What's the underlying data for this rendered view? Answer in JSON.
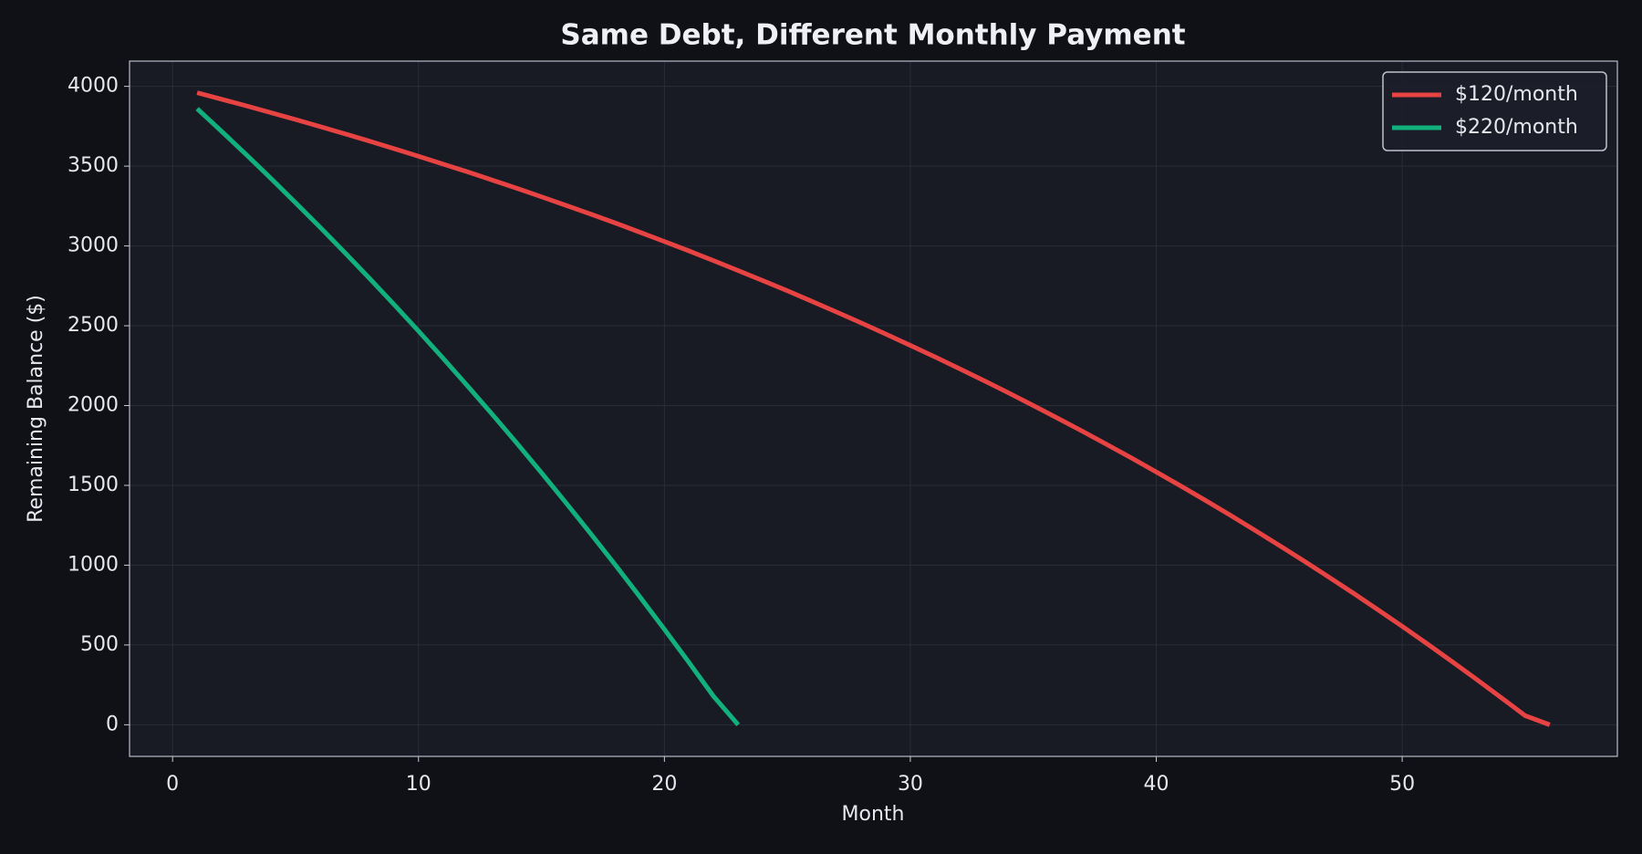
{
  "chart_data": {
    "type": "line",
    "title": "Same Debt, Different Monthly Payment",
    "xlabel": "Month",
    "ylabel": "Remaining Balance ($)",
    "xlim": [
      -1.75,
      58.75
    ],
    "ylim": [
      -198,
      4158
    ],
    "xticks": [
      0,
      10,
      20,
      30,
      40,
      50
    ],
    "yticks": [
      0,
      500,
      1000,
      1500,
      2000,
      2500,
      3000,
      3500,
      4000
    ],
    "grid": true,
    "legend": "upper right",
    "series": [
      {
        "name": "$120/month",
        "color": "#e84343",
        "x": [
          1,
          2,
          3,
          4,
          5,
          6,
          7,
          8,
          9,
          10,
          11,
          12,
          13,
          14,
          15,
          16,
          17,
          18,
          19,
          20,
          21,
          22,
          23,
          24,
          25,
          26,
          27,
          28,
          29,
          30,
          31,
          32,
          33,
          34,
          35,
          36,
          37,
          38,
          39,
          40,
          41,
          42,
          43,
          44,
          45,
          46,
          47,
          48,
          49,
          50,
          51,
          52,
          53,
          54,
          55,
          56
        ],
        "values": [
          3960,
          3919,
          3878,
          3835,
          3792,
          3748,
          3703,
          3657,
          3610,
          3562,
          3513,
          3464,
          3413,
          3361,
          3308,
          3254,
          3200,
          3144,
          3086,
          3028,
          2969,
          2908,
          2846,
          2783,
          2719,
          2653,
          2586,
          2518,
          2448,
          2377,
          2305,
          2231,
          2156,
          2079,
          2000,
          1920,
          1839,
          1755,
          1671,
          1584,
          1496,
          1406,
          1314,
          1220,
          1124,
          1027,
          927,
          826,
          722,
          617,
          509,
          399,
          287,
          173,
          57,
          0
        ]
      },
      {
        "name": "$220/month",
        "color": "#12b07c",
        "x": [
          1,
          2,
          3,
          4,
          5,
          6,
          7,
          8,
          9,
          10,
          11,
          12,
          13,
          14,
          15,
          16,
          17,
          18,
          19,
          20,
          21,
          22,
          23
        ],
        "values": [
          3860,
          3717,
          3572,
          3423,
          3271,
          3117,
          2959,
          2798,
          2634,
          2467,
          2296,
          2122,
          1945,
          1764,
          1579,
          1390,
          1198,
          1002,
          802,
          598,
          390,
          178,
          0
        ]
      }
    ]
  }
}
